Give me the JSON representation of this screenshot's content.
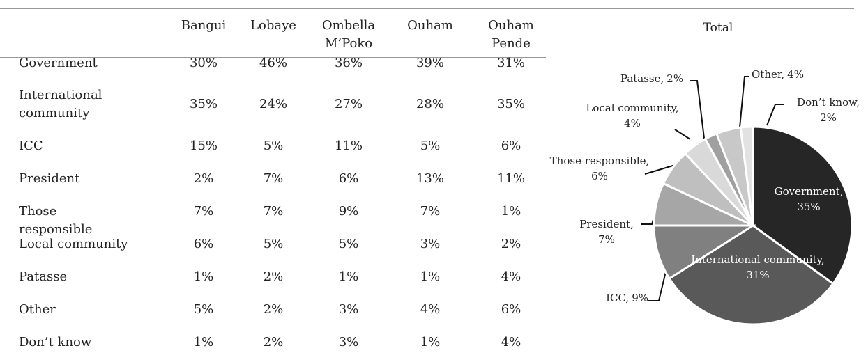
{
  "table": {
    "columns": [
      "Bangui",
      "Lobaye",
      "Ombella M’Poko",
      "Ouham",
      "Ouham Pende"
    ],
    "rows": [
      {
        "label": "Government",
        "values": [
          "30%",
          "46%",
          "36%",
          "39%",
          "31%"
        ]
      },
      {
        "label": "International community",
        "values": [
          "35%",
          "24%",
          "27%",
          "28%",
          "35%"
        ]
      },
      {
        "label": "ICC",
        "values": [
          "15%",
          "5%",
          "11%",
          "5%",
          "6%"
        ]
      },
      {
        "label": "President",
        "values": [
          "2%",
          "7%",
          "6%",
          "13%",
          "11%"
        ]
      },
      {
        "label": "Those responsible",
        "values": [
          "7%",
          "7%",
          "9%",
          "7%",
          "1%"
        ]
      },
      {
        "label": "Local community",
        "values": [
          "6%",
          "5%",
          "5%",
          "3%",
          "2%"
        ]
      },
      {
        "label": "Patasse",
        "values": [
          "1%",
          "2%",
          "1%",
          "1%",
          "4%"
        ]
      },
      {
        "label": "Other",
        "values": [
          "5%",
          "2%",
          "3%",
          "4%",
          "6%"
        ]
      },
      {
        "label": "Don’t know",
        "values": [
          "1%",
          "2%",
          "3%",
          "1%",
          "4%"
        ]
      }
    ]
  },
  "chart_data": {
    "type": "pie",
    "title": "Total",
    "categories": [
      "Government",
      "International community",
      "ICC",
      "President",
      "Those responsible",
      "Local community",
      "Patasse",
      "Other",
      "Don’t know"
    ],
    "values": [
      35,
      31,
      9,
      7,
      6,
      4,
      2,
      4,
      2
    ],
    "value_labels": [
      "35%",
      "31%",
      "9%",
      "7%",
      "6%",
      "4%",
      "2%",
      "4%",
      "2%"
    ],
    "colors": [
      "#262626",
      "#595959",
      "#808080",
      "#a6a6a6",
      "#bfbfbf",
      "#d9d9d9",
      "#a0a0a0",
      "#c8c8c8",
      "#e2e2e2"
    ]
  }
}
